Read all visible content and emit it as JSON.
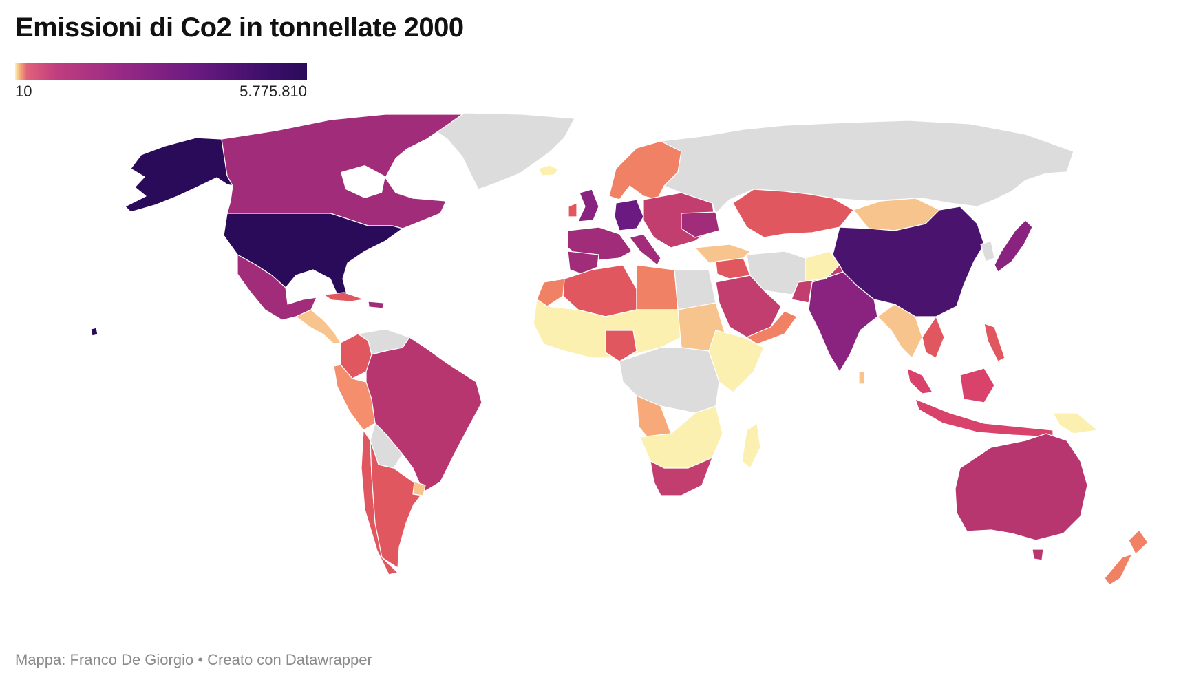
{
  "title": "Emissioni di Co2 in tonnellate 2000",
  "legend": {
    "min_label": "10",
    "max_label": "5.775.810",
    "scale": "sequenziale",
    "colors": [
      "#fcf0b0",
      "#f7b27c",
      "#f08164",
      "#e0575f",
      "#c13e7f",
      "#a02c7a",
      "#6a1a80",
      "#2a0b5a"
    ],
    "no_data_color": "#dcdcdc"
  },
  "credit": "Mappa: Franco De Giorgio • Creato con Datawrapper",
  "map_data": {
    "type": "choropleth",
    "regions": [
      {
        "name": "United States",
        "color": "#2a0b5a"
      },
      {
        "name": "China",
        "color": "#4a146e"
      },
      {
        "name": "Russia",
        "color": "#dcdcdc"
      },
      {
        "name": "Greenland",
        "color": "#dcdcdc"
      },
      {
        "name": "Canada",
        "color": "#a02c7a"
      },
      {
        "name": "Alaska",
        "color": "#2a0b5a"
      },
      {
        "name": "Mexico",
        "color": "#a02c7a"
      },
      {
        "name": "Brazil",
        "color": "#b8366f"
      },
      {
        "name": "Argentina",
        "color": "#e0575f"
      },
      {
        "name": "Australia",
        "color": "#b8366f"
      },
      {
        "name": "India",
        "color": "#8a2380"
      },
      {
        "name": "Japan",
        "color": "#8a2380"
      },
      {
        "name": "Kazakhstan",
        "color": "#e0575f"
      },
      {
        "name": "Mongolia",
        "color": "#f7c48d"
      },
      {
        "name": "Saudi Arabia",
        "color": "#c13e6f"
      },
      {
        "name": "Iran",
        "color": "#dcdcdc"
      },
      {
        "name": "Algeria",
        "color": "#e0575f"
      },
      {
        "name": "Libya",
        "color": "#f08164"
      },
      {
        "name": "Egypt",
        "color": "#dcdcdc"
      },
      {
        "name": "Nigeria",
        "color": "#e0575f"
      },
      {
        "name": "South Africa",
        "color": "#c13e6f"
      },
      {
        "name": "New Zealand",
        "color": "#f08164"
      },
      {
        "name": "Indonesia",
        "color": "#d9436b"
      },
      {
        "name": "Scandinavia",
        "color": "#f08164"
      },
      {
        "name": "Western Europe",
        "color": "#a02c7a"
      },
      {
        "name": "Germany",
        "color": "#6a1a80"
      },
      {
        "name": "Peru",
        "color": "#f58e6c"
      },
      {
        "name": "Colombia",
        "color": "#e0575f"
      }
    ]
  }
}
